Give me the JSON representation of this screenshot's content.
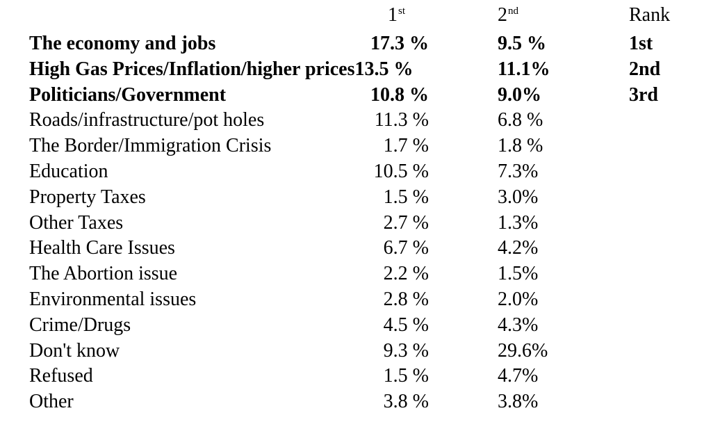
{
  "header": {
    "first": {
      "base": "1",
      "sup": "st"
    },
    "second": {
      "base": "2",
      "sup": "nd"
    },
    "rank": "Rank"
  },
  "rows": [
    {
      "label": "The economy and jobs",
      "first": "17.3 %",
      "second": "9.5 %",
      "rank": "1st",
      "bold": true
    },
    {
      "label": "High Gas Prices/Inflation/higher prices",
      "first": "13.5 %",
      "second": "11.1%",
      "rank": "2nd",
      "bold": true,
      "inline_first": true
    },
    {
      "label": "Politicians/Government",
      "first": "10.8 %",
      "second": "9.0%",
      "rank": "3rd",
      "bold": true
    },
    {
      "label": "Roads/infrastructure/pot holes",
      "first": "11.3 %",
      "second": "6.8 %"
    },
    {
      "label": "The Border/Immigration Crisis",
      "first": "1.7 %",
      "second": "1.8 %"
    },
    {
      "label": "Education",
      "first": "10.5 %",
      "second": "7.3%"
    },
    {
      "label": "Property Taxes",
      "first": "1.5 %",
      "second": "3.0%"
    },
    {
      "label": "Other Taxes",
      "first": "2.7 %",
      "second": "1.3%"
    },
    {
      "label": "Health Care Issues",
      "first": "6.7 %",
      "second": "4.2%"
    },
    {
      "label": "The Abortion issue",
      "first": "2.2 %",
      "second": "1.5%"
    },
    {
      "label": "Environmental issues",
      "first": "2.8 %",
      "second": "2.0%"
    },
    {
      "label": "Crime/Drugs",
      "first": "4.5 %",
      "second": "4.3%"
    },
    {
      "label": "Don't know",
      "first": "9.3 %",
      "second": "29.6%"
    },
    {
      "label": "Refused",
      "first": "1.5 %",
      "second": "4.7%"
    },
    {
      "label": "Other",
      "first": "3.8 %",
      "second": "3.8%"
    }
  ]
}
